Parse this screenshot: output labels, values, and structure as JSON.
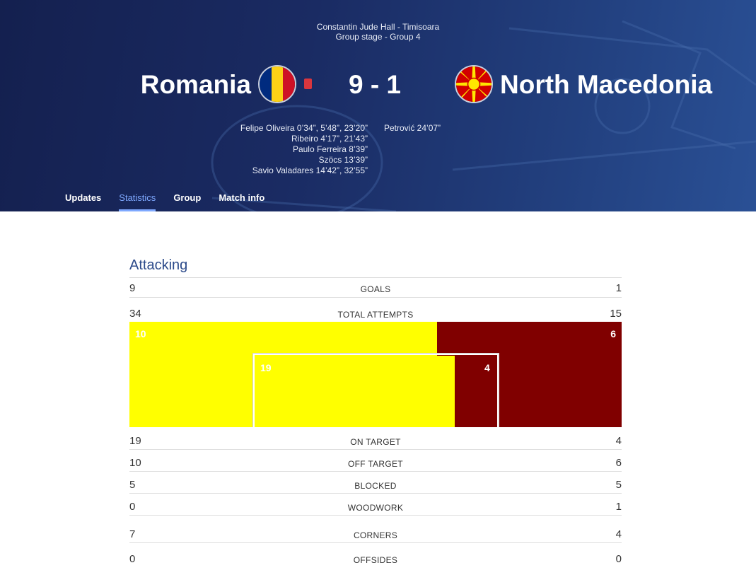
{
  "match": {
    "venue": "Constantin Jude Hall - Timisoara",
    "stage": "Group stage - Group 4",
    "home_team": "Romania",
    "away_team": "North Macedonia",
    "score": "9 - 1",
    "home_scorers": [
      "Felipe Oliveira 0’34”, 5’48”, 23’20”",
      "Ribeiro 4’17”, 21’43”",
      "Paulo Ferreira 8’39”",
      "Szöcs 13’39”",
      "Savio Valadares 14’42”, 32’55”"
    ],
    "away_scorers": [
      "Petrović 24’07”"
    ],
    "colors": {
      "romania_blue": "#002b7f",
      "romania_yellow": "#fcd116",
      "romania_red": "#ce1126",
      "macedonia_red": "#d20000",
      "macedonia_yellow": "#ffe600",
      "red_card": "#d9363e"
    }
  },
  "tabs": [
    "Updates",
    "Statistics",
    "Group",
    "Match info"
  ],
  "active_tab": "Statistics",
  "section": {
    "title": "Attacking",
    "stats": [
      {
        "label": "GOALS",
        "home": "9",
        "away": "1"
      },
      {
        "label": "TOTAL ATTEMPTS",
        "home": "34",
        "away": "15"
      },
      {
        "label": "ON TARGET",
        "home": "19",
        "away": "4"
      },
      {
        "label": "OFF TARGET",
        "home": "10",
        "away": "6"
      },
      {
        "label": "BLOCKED",
        "home": "5",
        "away": "5"
      },
      {
        "label": "WOODWORK",
        "home": "0",
        "away": "1"
      },
      {
        "label": "CORNERS",
        "home": "7",
        "away": "4"
      },
      {
        "label": "OFFSIDES",
        "home": "0",
        "away": "0"
      }
    ]
  },
  "chart_data": {
    "type": "bar",
    "series": [
      {
        "name": "Romania",
        "off_target": 10,
        "on_target": 19,
        "color": "#ffff00"
      },
      {
        "name": "North Macedonia",
        "off_target": 6,
        "on_target": 4,
        "color": "#800000"
      }
    ]
  }
}
